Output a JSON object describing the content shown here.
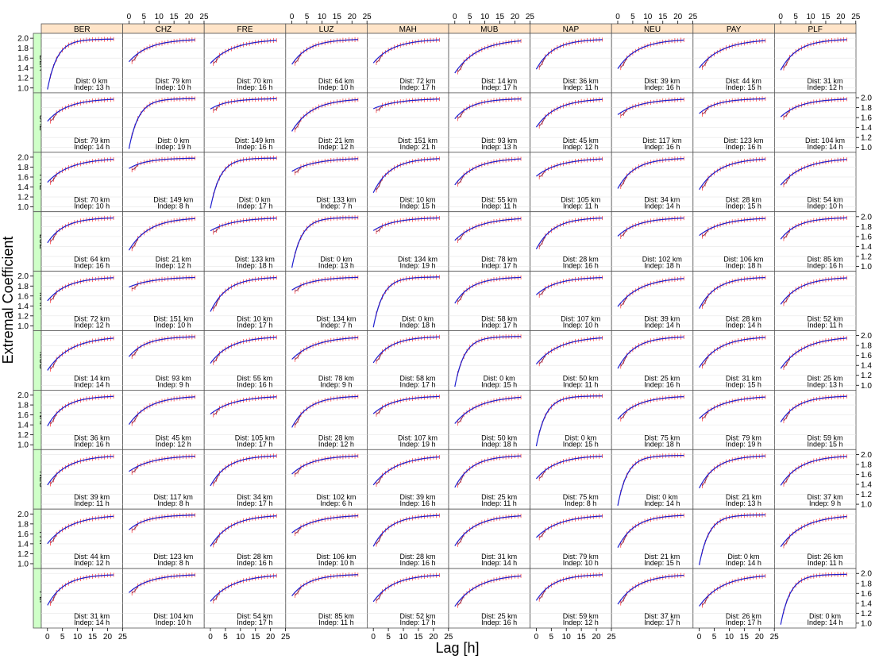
{
  "chart_data": {
    "type": "line",
    "xlabel": "Lag [h]",
    "ylabel": "Extremal Coefficient",
    "xlim": [
      -1,
      24
    ],
    "ylim": [
      0.95,
      2.05
    ],
    "x_ticks": [
      0,
      5,
      10,
      15,
      20,
      25
    ],
    "y_ticks": [
      1.0,
      1.2,
      1.4,
      1.6,
      1.8,
      2.0
    ],
    "stations": [
      "BER",
      "CHZ",
      "FRE",
      "LUZ",
      "MAH",
      "MUB",
      "NAP",
      "NEU",
      "PAY",
      "PLF"
    ],
    "dist_label": "Dist:",
    "indep_label": "Indep:",
    "dist_unit": "km",
    "indep_unit": "h",
    "dist_km": [
      [
        0,
        79,
        70,
        64,
        72,
        14,
        36,
        39,
        44,
        31
      ],
      [
        79,
        0,
        149,
        21,
        151,
        93,
        45,
        117,
        123,
        104
      ],
      [
        70,
        149,
        0,
        133,
        10,
        55,
        105,
        34,
        28,
        54
      ],
      [
        64,
        21,
        133,
        0,
        134,
        78,
        28,
        102,
        106,
        85
      ],
      [
        72,
        151,
        10,
        134,
        0,
        58,
        107,
        39,
        28,
        52
      ],
      [
        14,
        93,
        55,
        78,
        58,
        0,
        50,
        25,
        31,
        25
      ],
      [
        36,
        45,
        105,
        28,
        107,
        50,
        0,
        75,
        79,
        59
      ],
      [
        39,
        117,
        34,
        102,
        39,
        25,
        75,
        0,
        21,
        37
      ],
      [
        44,
        123,
        28,
        106,
        28,
        31,
        79,
        21,
        0,
        26
      ],
      [
        31,
        104,
        54,
        85,
        52,
        25,
        59,
        37,
        26,
        0
      ]
    ],
    "indep_h": [
      [
        13,
        10,
        16,
        10,
        17,
        17,
        11,
        16,
        15,
        12
      ],
      [
        14,
        19,
        16,
        12,
        21,
        13,
        12,
        16,
        16,
        14
      ],
      [
        10,
        8,
        17,
        7,
        15,
        11,
        11,
        14,
        15,
        10
      ],
      [
        16,
        12,
        18,
        13,
        19,
        17,
        16,
        18,
        18,
        16
      ],
      [
        12,
        10,
        17,
        7,
        18,
        17,
        10,
        14,
        14,
        11
      ],
      [
        14,
        9,
        16,
        9,
        17,
        15,
        11,
        16,
        15,
        13
      ],
      [
        16,
        12,
        17,
        12,
        19,
        18,
        15,
        18,
        19,
        15
      ],
      [
        11,
        8,
        17,
        6,
        16,
        11,
        8,
        14,
        13,
        9
      ],
      [
        12,
        8,
        16,
        10,
        16,
        14,
        10,
        15,
        14,
        11
      ],
      [
        14,
        10,
        17,
        11,
        17,
        16,
        12,
        17,
        17,
        14
      ]
    ],
    "curve_model": "theta(h) = 2 - (2 - theta0) * exp(-h / scale); empirical estimates shown with error bars",
    "colors": {
      "model_line": "#1f1fcf",
      "empirical_line": "#8b2f4f",
      "error_bars": "#ff3030",
      "strip_top": "#ffe4c8",
      "strip_left": "#cfffc8",
      "grid": "#e6e6e6"
    }
  }
}
